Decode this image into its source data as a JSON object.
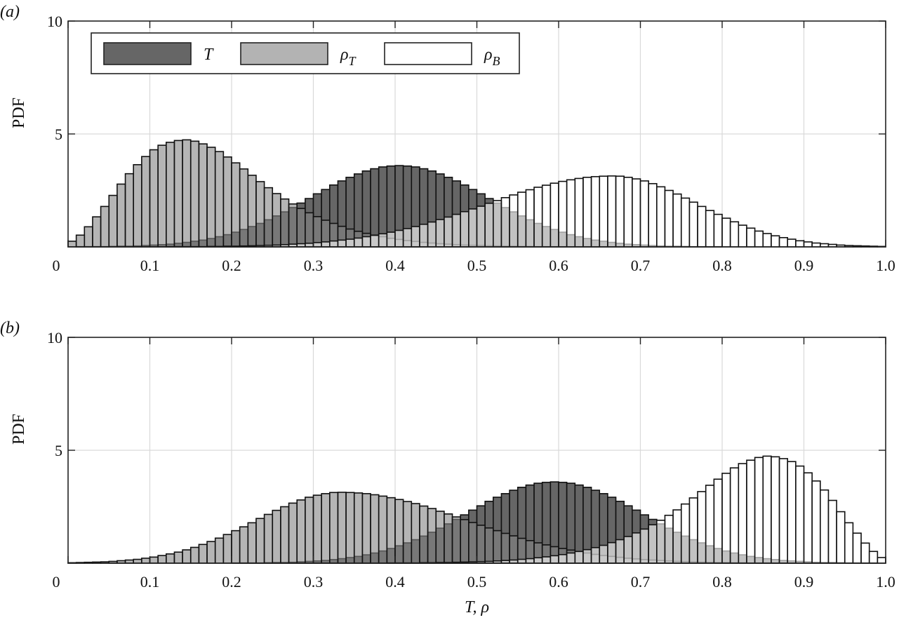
{
  "colors": {
    "T": "#666666",
    "rho_T": "#b3b3b3",
    "rho_B": "#ffffff",
    "grid": "#d9d9d9",
    "edge": "#111111"
  },
  "chart_data": [
    {
      "panel_label": "(a)",
      "type": "bar",
      "bin_width": 0.01,
      "bin_range": [
        0,
        1
      ],
      "xlim": [
        0,
        1
      ],
      "ylim": [
        0,
        10
      ],
      "xlabel": "",
      "ylabel": "PDF",
      "xticks": [
        "0",
        "0.1",
        "0.2",
        "0.3",
        "0.4",
        "0.5",
        "0.6",
        "0.7",
        "0.8",
        "0.9",
        "1.0"
      ],
      "yticks": [
        "5",
        "10"
      ],
      "grid": true,
      "legend": "top-left",
      "series": [
        {
          "name": "T",
          "values": [
            0.0,
            0.01,
            0.01,
            0.01,
            0.01,
            0.02,
            0.03,
            0.03,
            0.04,
            0.06,
            0.08,
            0.1,
            0.12,
            0.16,
            0.2,
            0.25,
            0.3,
            0.37,
            0.45,
            0.54,
            0.65,
            0.77,
            0.9,
            1.04,
            1.2,
            1.37,
            1.55,
            1.74,
            1.94,
            2.14,
            2.35,
            2.54,
            2.74,
            2.92,
            3.08,
            3.23,
            3.36,
            3.46,
            3.54,
            3.58,
            3.6,
            3.58,
            3.54,
            3.46,
            3.36,
            3.23,
            3.08,
            2.92,
            2.74,
            2.54,
            2.35,
            2.14,
            1.94,
            1.74,
            1.55,
            1.37,
            1.2,
            1.04,
            0.9,
            0.77,
            0.65,
            0.54,
            0.45,
            0.37,
            0.3,
            0.25,
            0.2,
            0.16,
            0.12,
            0.1,
            0.08,
            0.06,
            0.04,
            0.03,
            0.03,
            0.02,
            0.01,
            0.01,
            0.01,
            0.01,
            0,
            0,
            0,
            0,
            0,
            0,
            0,
            0,
            0,
            0,
            0,
            0,
            0,
            0,
            0,
            0,
            0,
            0,
            0,
            0
          ]
        },
        {
          "name": "ρ_T",
          "values": [
            0.25,
            0.52,
            0.89,
            1.33,
            1.79,
            2.28,
            2.78,
            3.24,
            3.64,
            4.0,
            4.3,
            4.5,
            4.63,
            4.71,
            4.74,
            4.68,
            4.56,
            4.41,
            4.22,
            3.98,
            3.72,
            3.45,
            3.17,
            2.89,
            2.62,
            2.36,
            2.12,
            1.9,
            1.7,
            1.51,
            1.34,
            1.18,
            1.04,
            0.91,
            0.79,
            0.69,
            0.6,
            0.52,
            0.45,
            0.38,
            0.33,
            0.28,
            0.24,
            0.2,
            0.17,
            0.14,
            0.12,
            0.1,
            0.08,
            0.07,
            0.06,
            0.05,
            0.04,
            0.03,
            0.03,
            0.02,
            0.02,
            0.01,
            0.01,
            0.01,
            0.01,
            0,
            0,
            0,
            0,
            0,
            0,
            0,
            0,
            0,
            0,
            0,
            0,
            0,
            0,
            0,
            0,
            0,
            0,
            0,
            0,
            0,
            0,
            0,
            0,
            0,
            0,
            0,
            0,
            0,
            0,
            0,
            0,
            0,
            0,
            0,
            0,
            0,
            0,
            0
          ]
        },
        {
          "name": "ρ_B",
          "values": [
            0,
            0,
            0,
            0,
            0,
            0,
            0,
            0,
            0,
            0,
            0,
            0,
            0.01,
            0.01,
            0.01,
            0.01,
            0.01,
            0.02,
            0.02,
            0.03,
            0.03,
            0.04,
            0.05,
            0.06,
            0.07,
            0.08,
            0.1,
            0.12,
            0.14,
            0.16,
            0.19,
            0.22,
            0.26,
            0.3,
            0.34,
            0.39,
            0.45,
            0.51,
            0.58,
            0.65,
            0.73,
            0.81,
            0.9,
            1.0,
            1.1,
            1.21,
            1.32,
            1.44,
            1.56,
            1.68,
            1.8,
            1.93,
            2.05,
            2.18,
            2.3,
            2.42,
            2.53,
            2.64,
            2.73,
            2.82,
            2.9,
            2.97,
            3.03,
            3.08,
            3.11,
            3.13,
            3.14,
            3.13,
            3.08,
            3.01,
            2.92,
            2.8,
            2.66,
            2.5,
            2.34,
            2.16,
            1.98,
            1.79,
            1.61,
            1.44,
            1.27,
            1.11,
            0.96,
            0.83,
            0.7,
            0.59,
            0.49,
            0.41,
            0.34,
            0.27,
            0.22,
            0.17,
            0.14,
            0.11,
            0.08,
            0.06,
            0.05,
            0.04,
            0.03,
            0.02
          ]
        }
      ]
    },
    {
      "panel_label": "(b)",
      "type": "bar",
      "bin_width": 0.01,
      "bin_range": [
        0,
        1
      ],
      "xlim": [
        0,
        1
      ],
      "ylim": [
        0,
        10
      ],
      "xlabel": "T, ρ",
      "ylabel": "PDF",
      "xticks": [
        "0",
        "0.1",
        "0.2",
        "0.3",
        "0.4",
        "0.5",
        "0.6",
        "0.7",
        "0.8",
        "0.9",
        "1.0"
      ],
      "yticks": [
        "5",
        "10"
      ],
      "grid": true,
      "series": [
        {
          "name": "T",
          "values": [
            0,
            0,
            0,
            0,
            0,
            0,
            0,
            0,
            0,
            0,
            0,
            0,
            0,
            0,
            0,
            0,
            0,
            0,
            0,
            0,
            0.01,
            0.01,
            0.01,
            0.01,
            0.02,
            0.03,
            0.03,
            0.04,
            0.06,
            0.08,
            0.1,
            0.12,
            0.16,
            0.2,
            0.25,
            0.3,
            0.37,
            0.45,
            0.54,
            0.65,
            0.77,
            0.9,
            1.04,
            1.2,
            1.37,
            1.55,
            1.74,
            1.94,
            2.14,
            2.35,
            2.54,
            2.74,
            2.92,
            3.08,
            3.23,
            3.36,
            3.46,
            3.54,
            3.58,
            3.6,
            3.58,
            3.54,
            3.46,
            3.36,
            3.23,
            3.08,
            2.92,
            2.74,
            2.54,
            2.35,
            2.14,
            1.94,
            1.74,
            1.55,
            1.37,
            1.2,
            1.04,
            0.9,
            0.77,
            0.65,
            0.54,
            0.45,
            0.37,
            0.3,
            0.25,
            0.2,
            0.16,
            0.12,
            0.1,
            0.08,
            0.06,
            0.04,
            0.03,
            0.03,
            0.02,
            0.01,
            0.01,
            0.01,
            0.01,
            0.0
          ]
        },
        {
          "name": "ρ_T",
          "values": [
            0.02,
            0.03,
            0.04,
            0.05,
            0.06,
            0.08,
            0.11,
            0.14,
            0.17,
            0.22,
            0.27,
            0.34,
            0.41,
            0.49,
            0.59,
            0.7,
            0.83,
            0.96,
            1.11,
            1.27,
            1.44,
            1.61,
            1.79,
            1.98,
            2.16,
            2.34,
            2.5,
            2.66,
            2.8,
            2.92,
            3.01,
            3.08,
            3.13,
            3.14,
            3.13,
            3.11,
            3.08,
            3.03,
            2.97,
            2.9,
            2.82,
            2.73,
            2.64,
            2.53,
            2.42,
            2.3,
            2.18,
            2.05,
            1.93,
            1.8,
            1.68,
            1.56,
            1.44,
            1.32,
            1.21,
            1.1,
            1.0,
            0.9,
            0.81,
            0.73,
            0.65,
            0.58,
            0.51,
            0.45,
            0.39,
            0.34,
            0.3,
            0.26,
            0.22,
            0.19,
            0.16,
            0.14,
            0.12,
            0.1,
            0.08,
            0.07,
            0.06,
            0.05,
            0.04,
            0.03,
            0.03,
            0.02,
            0.02,
            0.01,
            0.01,
            0.01,
            0.01,
            0.01,
            0,
            0,
            0,
            0,
            0,
            0,
            0,
            0,
            0,
            0,
            0,
            0
          ]
        },
        {
          "name": "ρ_B",
          "values": [
            0,
            0,
            0,
            0,
            0,
            0,
            0,
            0,
            0,
            0,
            0,
            0,
            0,
            0,
            0,
            0,
            0,
            0,
            0,
            0,
            0,
            0,
            0,
            0,
            0,
            0,
            0,
            0,
            0,
            0,
            0,
            0,
            0,
            0,
            0,
            0,
            0,
            0,
            0,
            0.01,
            0.01,
            0.01,
            0.01,
            0.02,
            0.02,
            0.03,
            0.03,
            0.04,
            0.05,
            0.06,
            0.07,
            0.08,
            0.1,
            0.12,
            0.14,
            0.17,
            0.2,
            0.24,
            0.28,
            0.33,
            0.38,
            0.45,
            0.52,
            0.6,
            0.69,
            0.79,
            0.91,
            1.04,
            1.18,
            1.34,
            1.51,
            1.7,
            1.9,
            2.12,
            2.36,
            2.62,
            2.89,
            3.17,
            3.45,
            3.72,
            3.98,
            4.22,
            4.41,
            4.56,
            4.68,
            4.74,
            4.71,
            4.63,
            4.5,
            4.3,
            4.0,
            3.64,
            3.24,
            2.78,
            2.28,
            1.79,
            1.33,
            0.89,
            0.52,
            0.25
          ]
        }
      ]
    }
  ]
}
